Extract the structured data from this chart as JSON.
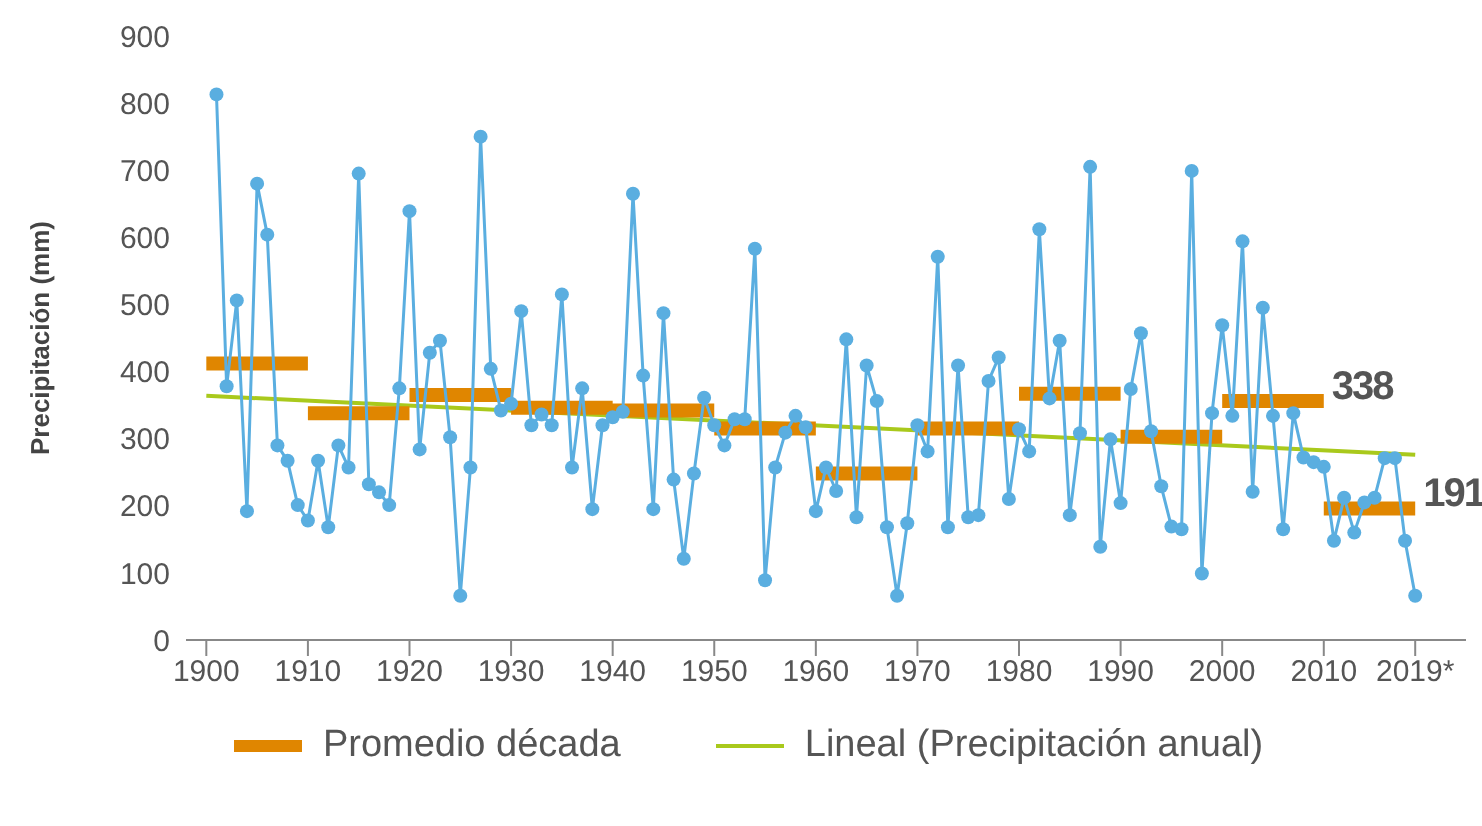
{
  "chart_data": {
    "type": "line",
    "ylabel": "Precipitación (mm)",
    "xlim": [
      1898,
      2024
    ],
    "xticks": [
      1900,
      1910,
      1920,
      1930,
      1940,
      1950,
      1960,
      1970,
      1980,
      1990,
      2000,
      2010,
      {
        "value": 2019,
        "label": "2019*"
      }
    ],
    "ylim": [
      0,
      900
    ],
    "yticks": [
      0,
      100,
      200,
      300,
      400,
      500,
      600,
      700,
      800,
      900
    ],
    "grid": false,
    "legend": "bottom",
    "annotations": [
      "338",
      "191"
    ],
    "series": [
      {
        "color": "#5aaee0",
        "marker": "circle",
        "x": [
          1901,
          1902,
          1903,
          1904,
          1905,
          1906,
          1907,
          1908,
          1909,
          1910,
          1911,
          1912,
          1913,
          1914,
          1915,
          1916,
          1917,
          1918,
          1919,
          1920,
          1921,
          1922,
          1923,
          1924,
          1925,
          1926,
          1927,
          1928,
          1929,
          1930,
          1931,
          1932,
          1933,
          1934,
          1935,
          1936,
          1937,
          1938,
          1939,
          1940,
          1941,
          1942,
          1943,
          1944,
          1945,
          1946,
          1947,
          1948,
          1949,
          1950,
          1951,
          1952,
          1953,
          1954,
          1955,
          1956,
          1957,
          1958,
          1959,
          1960,
          1961,
          1962,
          1963,
          1964,
          1965,
          1966,
          1967,
          1968,
          1969,
          1970,
          1971,
          1972,
          1973,
          1974,
          1975,
          1976,
          1977,
          1978,
          1979,
          1980,
          1981,
          1982,
          1983,
          1984,
          1985,
          1986,
          1987,
          1988,
          1989,
          1990,
          1991,
          1992,
          1993,
          1994,
          1995,
          1996,
          1997,
          1998,
          1999,
          2000,
          2001,
          2002,
          2003,
          2004,
          2005,
          2006,
          2007,
          2008,
          2009,
          2010,
          2011,
          2012,
          2013,
          2014,
          2015,
          2016,
          2017,
          2018,
          2019
        ],
        "values": [
          813,
          378,
          506,
          192,
          680,
          604,
          290,
          267,
          201,
          178,
          267,
          168,
          290,
          257,
          695,
          232,
          220,
          201,
          375,
          639,
          284,
          428,
          446,
          302,
          66,
          257,
          750,
          404,
          342,
          352,
          490,
          320,
          336,
          320,
          515,
          257,
          375,
          195,
          320,
          332,
          340,
          665,
          394,
          195,
          487,
          239,
          121,
          248,
          361,
          320,
          290,
          329,
          329,
          583,
          89,
          257,
          309,
          334,
          317,
          192,
          257,
          222,
          448,
          183,
          409,
          356,
          168,
          66,
          174,
          320,
          281,
          571,
          168,
          409,
          183,
          186,
          386,
          421,
          210,
          314,
          281,
          612,
          360,
          446,
          186,
          308,
          705,
          139,
          299,
          204,
          374,
          457,
          311,
          229,
          169,
          165,
          699,
          99,
          338,
          469,
          334,
          594,
          221,
          495,
          334,
          165,
          338,
          272,
          265,
          258,
          148,
          212,
          160,
          205,
          212,
          271,
          271,
          148,
          66
        ]
      },
      {
        "name": "Promedio década",
        "color": "#e08600",
        "marker": "none",
        "x": [
          1900,
          1910,
          null,
          1910,
          1920,
          null,
          1920,
          1930,
          null,
          1930,
          1940,
          null,
          1940,
          1950,
          null,
          1950,
          1960,
          null,
          1960,
          1970,
          null,
          1970,
          1980,
          null,
          1980,
          1990,
          null,
          1990,
          2000,
          null,
          2000,
          2010,
          null,
          2010,
          2019
        ],
        "values": [
          412,
          412,
          null,
          338,
          338,
          null,
          365,
          365,
          null,
          346,
          346,
          null,
          342,
          342,
          null,
          315,
          315,
          null,
          248,
          248,
          null,
          315,
          315,
          null,
          367,
          367,
          null,
          303,
          303,
          null,
          356,
          356,
          null,
          196,
          196
        ]
      },
      {
        "name": "Lineal (Precipitación anual)",
        "color": "#a9c91c",
        "marker": "none",
        "x": [
          1900,
          2019
        ],
        "values": [
          364,
          276
        ]
      }
    ]
  }
}
